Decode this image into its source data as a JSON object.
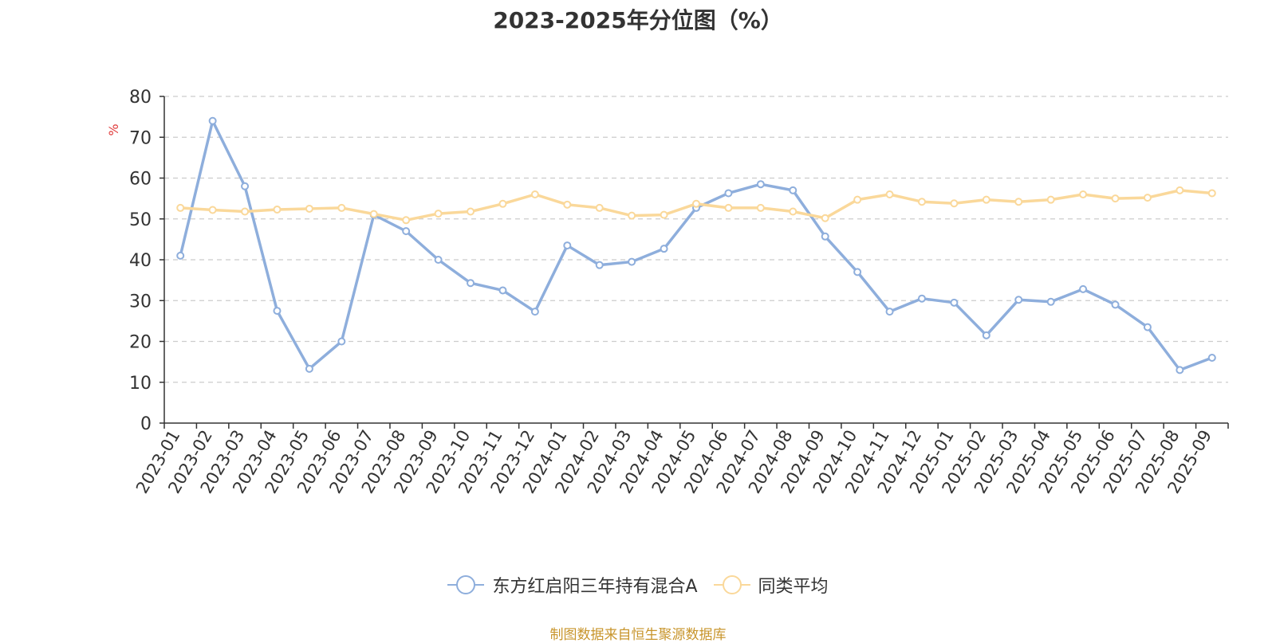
{
  "title": "2023-2025年分位图（%）",
  "source": "制图数据来自恒生聚源数据库",
  "chart_data": {
    "type": "line",
    "ylabel": "%",
    "ylim": [
      0,
      80
    ],
    "yticks": [
      "0",
      "10",
      "20",
      "30",
      "40",
      "50",
      "60",
      "70",
      "80"
    ],
    "grid": true,
    "legend_position": "bottom",
    "categories": [
      "2023-01",
      "2023-02",
      "2023-03",
      "2023-04",
      "2023-05",
      "2023-06",
      "2023-07",
      "2023-08",
      "2023-09",
      "2023-10",
      "2023-11",
      "2023-12",
      "2024-01",
      "2024-02",
      "2024-03",
      "2024-04",
      "2024-05",
      "2024-06",
      "2024-07",
      "2024-08",
      "2024-09",
      "2024-10",
      "2024-11",
      "2024-12",
      "2025-01",
      "2025-02",
      "2025-03",
      "2025-04",
      "2025-05",
      "2025-06",
      "2025-07",
      "2025-08",
      "2025-09"
    ],
    "series": [
      {
        "name": "东方红启阳三年持有混合A",
        "color": "#8eaedc",
        "values": [
          41,
          74,
          58,
          27.5,
          13.3,
          20,
          51,
          47,
          40,
          34.3,
          32.5,
          27.3,
          43.5,
          38.7,
          39.5,
          42.7,
          52.7,
          56.3,
          58.5,
          57,
          45.7,
          37,
          27.3,
          30.5,
          29.5,
          21.5,
          30.2,
          29.7,
          32.8,
          29,
          23.5,
          13,
          16
        ]
      },
      {
        "name": "同类平均",
        "color": "#fad89a",
        "values": [
          52.7,
          52.2,
          51.8,
          52.3,
          52.5,
          52.7,
          51.2,
          49.7,
          51.3,
          51.8,
          53.7,
          56,
          53.5,
          52.7,
          50.8,
          51,
          53.7,
          52.7,
          52.7,
          51.8,
          50.2,
          54.7,
          56,
          54.2,
          53.8,
          54.7,
          54.2,
          54.7,
          56,
          55,
          55.2,
          57,
          56.3
        ]
      }
    ]
  }
}
